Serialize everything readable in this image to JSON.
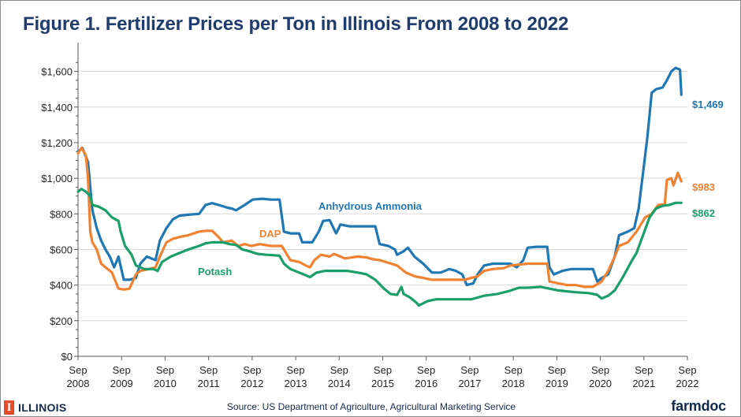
{
  "title": "Figure 1. Fertilizer Prices per Ton in Illinois From 2008 to 2022",
  "footer": {
    "source": "Source: US Department of Agriculture, Agricultural Marketing Service",
    "left_logo_mark": "I",
    "left_logo_text": "ILLINOIS",
    "right_logo_text": "farmdoc"
  },
  "colors": {
    "anhydrous": "#1f77b4",
    "dap": "#f08232",
    "potash": "#1a9e6a",
    "title": "#1f3c6e"
  },
  "chart_data": {
    "type": "line",
    "title": "Figure 1. Fertilizer Prices per Ton in Illinois From 2008 to 2022",
    "xlabel": "",
    "ylabel": "",
    "ylim": [
      0,
      1700
    ],
    "xlim": [
      2008.67,
      2022.67
    ],
    "grid": "horizontal",
    "y_ticks": [
      0,
      200,
      400,
      600,
      800,
      1000,
      1200,
      1400,
      1600
    ],
    "y_tick_labels": [
      "$0",
      "$200",
      "$400",
      "$600",
      "$800",
      "$1,000",
      "$1,200",
      "$1,400",
      "$1,600"
    ],
    "x_ticks": [
      {
        "x": 2008.67,
        "month": "Sep",
        "year": "2008"
      },
      {
        "x": 2009.67,
        "month": "Sep",
        "year": "2009"
      },
      {
        "x": 2010.67,
        "month": "Sep",
        "year": "2010"
      },
      {
        "x": 2011.67,
        "month": "Sep",
        "year": "2011"
      },
      {
        "x": 2012.67,
        "month": "Sep",
        "year": "2012"
      },
      {
        "x": 2013.67,
        "month": "Sep",
        "year": "2013"
      },
      {
        "x": 2014.67,
        "month": "Sep",
        "year": "2014"
      },
      {
        "x": 2015.67,
        "month": "Sep",
        "year": "2015"
      },
      {
        "x": 2016.67,
        "month": "Sep",
        "year": "2016"
      },
      {
        "x": 2017.67,
        "month": "Sep",
        "year": "2017"
      },
      {
        "x": 2018.67,
        "month": "Sep",
        "year": "2018"
      },
      {
        "x": 2019.67,
        "month": "Sep",
        "year": "2019"
      },
      {
        "x": 2020.67,
        "month": "Sep",
        "year": "2020"
      },
      {
        "x": 2021.67,
        "month": "Sep",
        "year": "2021"
      },
      {
        "x": 2022.67,
        "month": "Sep",
        "year": "2022"
      }
    ],
    "series": [
      {
        "name": "Anhydrous Ammonia",
        "color_key": "anhydrous",
        "end_label": "$1,469",
        "points": [
          [
            2008.67,
            1150
          ],
          [
            2008.77,
            1170
          ],
          [
            2008.9,
            1090
          ],
          [
            2009.0,
            820
          ],
          [
            2009.1,
            720
          ],
          [
            2009.2,
            650
          ],
          [
            2009.3,
            600
          ],
          [
            2009.4,
            560
          ],
          [
            2009.5,
            500
          ],
          [
            2009.6,
            560
          ],
          [
            2009.72,
            430
          ],
          [
            2009.85,
            430
          ],
          [
            2010.0,
            440
          ],
          [
            2010.1,
            520
          ],
          [
            2010.25,
            560
          ],
          [
            2010.45,
            540
          ],
          [
            2010.55,
            650
          ],
          [
            2010.7,
            720
          ],
          [
            2010.85,
            770
          ],
          [
            2011.0,
            790
          ],
          [
            2011.2,
            795
          ],
          [
            2011.45,
            800
          ],
          [
            2011.6,
            850
          ],
          [
            2011.75,
            860
          ],
          [
            2011.9,
            850
          ],
          [
            2012.1,
            835
          ],
          [
            2012.2,
            830
          ],
          [
            2012.3,
            820
          ],
          [
            2012.5,
            850
          ],
          [
            2012.68,
            880
          ],
          [
            2012.9,
            885
          ],
          [
            2013.1,
            880
          ],
          [
            2013.3,
            880
          ],
          [
            2013.4,
            700
          ],
          [
            2013.55,
            690
          ],
          [
            2013.75,
            690
          ],
          [
            2013.82,
            640
          ],
          [
            2013.9,
            640
          ],
          [
            2014.05,
            640
          ],
          [
            2014.2,
            700
          ],
          [
            2014.3,
            760
          ],
          [
            2014.45,
            765
          ],
          [
            2014.6,
            690
          ],
          [
            2014.7,
            740
          ],
          [
            2014.9,
            730
          ],
          [
            2015.1,
            730
          ],
          [
            2015.35,
            730
          ],
          [
            2015.5,
            730
          ],
          [
            2015.6,
            630
          ],
          [
            2015.8,
            620
          ],
          [
            2015.95,
            600
          ],
          [
            2016.0,
            570
          ],
          [
            2016.15,
            590
          ],
          [
            2016.25,
            610
          ],
          [
            2016.4,
            560
          ],
          [
            2016.6,
            520
          ],
          [
            2016.8,
            470
          ],
          [
            2017.0,
            470
          ],
          [
            2017.2,
            490
          ],
          [
            2017.35,
            480
          ],
          [
            2017.5,
            460
          ],
          [
            2017.6,
            400
          ],
          [
            2017.75,
            410
          ],
          [
            2017.85,
            460
          ],
          [
            2018.0,
            510
          ],
          [
            2018.2,
            520
          ],
          [
            2018.45,
            520
          ],
          [
            2018.6,
            520
          ],
          [
            2018.75,
            500
          ],
          [
            2018.9,
            540
          ],
          [
            2019.0,
            610
          ],
          [
            2019.2,
            615
          ],
          [
            2019.45,
            615
          ],
          [
            2019.5,
            500
          ],
          [
            2019.6,
            460
          ],
          [
            2019.8,
            480
          ],
          [
            2020.0,
            490
          ],
          [
            2020.3,
            490
          ],
          [
            2020.5,
            490
          ],
          [
            2020.6,
            420
          ],
          [
            2020.7,
            440
          ],
          [
            2020.85,
            460
          ],
          [
            2021.0,
            560
          ],
          [
            2021.1,
            680
          ],
          [
            2021.3,
            700
          ],
          [
            2021.45,
            720
          ],
          [
            2021.55,
            830
          ],
          [
            2021.75,
            1230
          ],
          [
            2021.85,
            1480
          ],
          [
            2021.95,
            1500
          ],
          [
            2022.1,
            1510
          ],
          [
            2022.2,
            1550
          ],
          [
            2022.3,
            1600
          ],
          [
            2022.4,
            1620
          ],
          [
            2022.5,
            1610
          ],
          [
            2022.53,
            1469
          ]
        ]
      },
      {
        "name": "DAP",
        "color_key": "dap",
        "end_label": "$983",
        "points": [
          [
            2008.67,
            1140
          ],
          [
            2008.75,
            1170
          ],
          [
            2008.85,
            1130
          ],
          [
            2008.9,
            1000
          ],
          [
            2008.95,
            700
          ],
          [
            2009.0,
            640
          ],
          [
            2009.1,
            600
          ],
          [
            2009.2,
            520
          ],
          [
            2009.3,
            500
          ],
          [
            2009.45,
            470
          ],
          [
            2009.5,
            440
          ],
          [
            2009.6,
            380
          ],
          [
            2009.72,
            375
          ],
          [
            2009.85,
            380
          ],
          [
            2010.0,
            460
          ],
          [
            2010.1,
            480
          ],
          [
            2010.3,
            490
          ],
          [
            2010.45,
            500
          ],
          [
            2010.55,
            560
          ],
          [
            2010.7,
            640
          ],
          [
            2010.85,
            660
          ],
          [
            2011.0,
            670
          ],
          [
            2011.2,
            680
          ],
          [
            2011.45,
            700
          ],
          [
            2011.6,
            705
          ],
          [
            2011.75,
            705
          ],
          [
            2011.9,
            670
          ],
          [
            2012.0,
            640
          ],
          [
            2012.2,
            650
          ],
          [
            2012.35,
            620
          ],
          [
            2012.5,
            630
          ],
          [
            2012.65,
            620
          ],
          [
            2012.85,
            630
          ],
          [
            2013.1,
            620
          ],
          [
            2013.35,
            620
          ],
          [
            2013.45,
            580
          ],
          [
            2013.55,
            540
          ],
          [
            2013.75,
            530
          ],
          [
            2013.9,
            510
          ],
          [
            2014.0,
            500
          ],
          [
            2014.1,
            540
          ],
          [
            2014.25,
            570
          ],
          [
            2014.45,
            560
          ],
          [
            2014.55,
            575
          ],
          [
            2014.8,
            550
          ],
          [
            2015.1,
            560
          ],
          [
            2015.3,
            555
          ],
          [
            2015.45,
            545
          ],
          [
            2015.6,
            540
          ],
          [
            2015.8,
            525
          ],
          [
            2016.0,
            510
          ],
          [
            2016.2,
            470
          ],
          [
            2016.4,
            450
          ],
          [
            2016.6,
            440
          ],
          [
            2016.8,
            430
          ],
          [
            2017.0,
            430
          ],
          [
            2017.2,
            430
          ],
          [
            2017.4,
            430
          ],
          [
            2017.55,
            430
          ],
          [
            2017.7,
            440
          ],
          [
            2017.85,
            450
          ],
          [
            2018.0,
            480
          ],
          [
            2018.2,
            490
          ],
          [
            2018.45,
            495
          ],
          [
            2018.6,
            510
          ],
          [
            2018.8,
            515
          ],
          [
            2019.0,
            520
          ],
          [
            2019.3,
            520
          ],
          [
            2019.45,
            520
          ],
          [
            2019.5,
            420
          ],
          [
            2019.7,
            410
          ],
          [
            2019.9,
            400
          ],
          [
            2020.1,
            400
          ],
          [
            2020.3,
            390
          ],
          [
            2020.5,
            390
          ],
          [
            2020.7,
            420
          ],
          [
            2020.85,
            480
          ],
          [
            2021.0,
            560
          ],
          [
            2021.1,
            620
          ],
          [
            2021.3,
            640
          ],
          [
            2021.5,
            700
          ],
          [
            2021.7,
            780
          ],
          [
            2021.85,
            800
          ],
          [
            2022.0,
            850
          ],
          [
            2022.15,
            855
          ],
          [
            2022.2,
            990
          ],
          [
            2022.3,
            1000
          ],
          [
            2022.35,
            960
          ],
          [
            2022.45,
            1030
          ],
          [
            2022.53,
            983
          ]
        ]
      },
      {
        "name": "Potash",
        "color_key": "potash",
        "end_label": "$862",
        "points": [
          [
            2008.67,
            925
          ],
          [
            2008.75,
            940
          ],
          [
            2008.85,
            925
          ],
          [
            2008.95,
            900
          ],
          [
            2009.0,
            850
          ],
          [
            2009.15,
            840
          ],
          [
            2009.3,
            820
          ],
          [
            2009.45,
            780
          ],
          [
            2009.6,
            760
          ],
          [
            2009.65,
            700
          ],
          [
            2009.75,
            620
          ],
          [
            2009.9,
            570
          ],
          [
            2010.0,
            510
          ],
          [
            2010.2,
            490
          ],
          [
            2010.4,
            490
          ],
          [
            2010.5,
            480
          ],
          [
            2010.6,
            530
          ],
          [
            2010.8,
            560
          ],
          [
            2011.0,
            580
          ],
          [
            2011.2,
            600
          ],
          [
            2011.45,
            620
          ],
          [
            2011.6,
            635
          ],
          [
            2011.75,
            640
          ],
          [
            2012.0,
            640
          ],
          [
            2012.15,
            630
          ],
          [
            2012.3,
            625
          ],
          [
            2012.45,
            600
          ],
          [
            2012.6,
            590
          ],
          [
            2012.8,
            575
          ],
          [
            2013.0,
            570
          ],
          [
            2013.3,
            565
          ],
          [
            2013.4,
            520
          ],
          [
            2013.55,
            490
          ],
          [
            2013.75,
            470
          ],
          [
            2013.9,
            455
          ],
          [
            2014.0,
            445
          ],
          [
            2014.15,
            470
          ],
          [
            2014.35,
            480
          ],
          [
            2014.6,
            480
          ],
          [
            2014.85,
            480
          ],
          [
            2015.1,
            470
          ],
          [
            2015.3,
            460
          ],
          [
            2015.5,
            430
          ],
          [
            2015.7,
            380
          ],
          [
            2015.85,
            350
          ],
          [
            2016.0,
            345
          ],
          [
            2016.1,
            390
          ],
          [
            2016.15,
            350
          ],
          [
            2016.3,
            330
          ],
          [
            2016.45,
            300
          ],
          [
            2016.5,
            285
          ],
          [
            2016.7,
            310
          ],
          [
            2016.9,
            320
          ],
          [
            2017.1,
            320
          ],
          [
            2017.4,
            320
          ],
          [
            2017.7,
            320
          ],
          [
            2017.85,
            330
          ],
          [
            2018.0,
            340
          ],
          [
            2018.3,
            350
          ],
          [
            2018.55,
            365
          ],
          [
            2018.8,
            385
          ],
          [
            2019.0,
            385
          ],
          [
            2019.3,
            390
          ],
          [
            2019.5,
            380
          ],
          [
            2019.7,
            370
          ],
          [
            2019.9,
            365
          ],
          [
            2020.1,
            360
          ],
          [
            2020.4,
            355
          ],
          [
            2020.6,
            345
          ],
          [
            2020.7,
            325
          ],
          [
            2020.85,
            340
          ],
          [
            2021.0,
            370
          ],
          [
            2021.2,
            450
          ],
          [
            2021.4,
            540
          ],
          [
            2021.5,
            580
          ],
          [
            2021.65,
            680
          ],
          [
            2021.8,
            780
          ],
          [
            2021.95,
            830
          ],
          [
            2022.1,
            845
          ],
          [
            2022.25,
            850
          ],
          [
            2022.4,
            862
          ],
          [
            2022.53,
            862
          ]
        ]
      }
    ],
    "annotations": [
      {
        "text": "Anhydrous Ammonia",
        "series": "Anhydrous Ammonia"
      },
      {
        "text": "DAP",
        "series": "DAP"
      },
      {
        "text": "Potash",
        "series": "Potash"
      }
    ]
  }
}
